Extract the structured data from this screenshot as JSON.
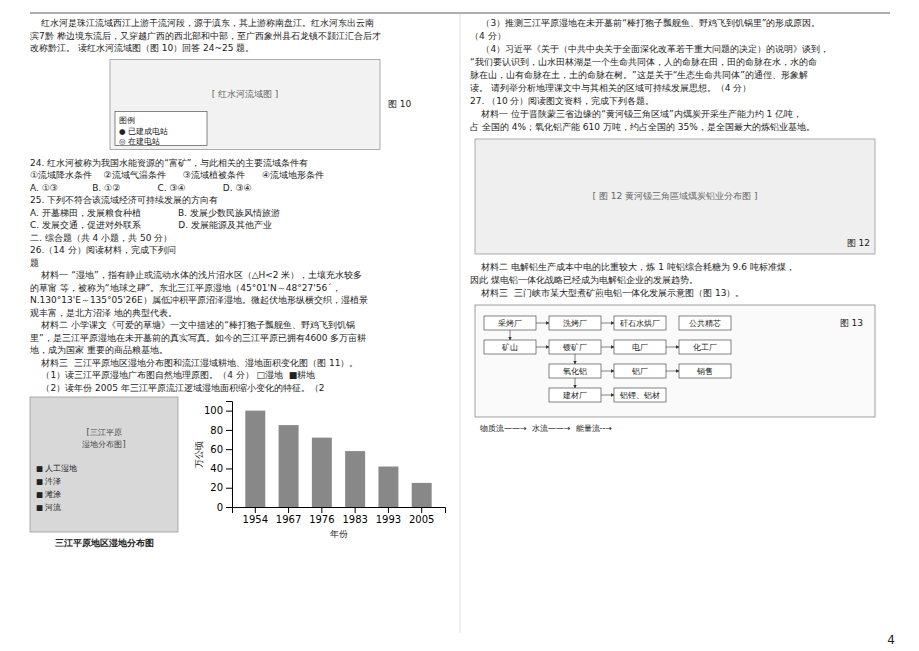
{
  "background_color": "#ffffff",
  "page_number": "4",
  "left_column": {
    "intro": [
      "    红水河是珠江流域西江上游干流河段，源于滇东，其上游称南盘江。红水河东出云南",
      "滨7黔 桦边境东流后，又穿越广西的西北部和中部，至广西象州县石龙镇不颢江汇合后才",
      "改称黔江。 读红水河流域图（图 10）回答 24~25 题。"
    ],
    "map10": {
      "label": "[ 红水河流域图 ]",
      "legend_title": "图例",
      "legend_items": [
        "● 已建成电站",
        "◎ 在建电站"
      ],
      "caption": "图 10"
    },
    "body": [
      "24. 红水河被称为我国水能资源的“富矿”，与此相关的主要流域条件有",
      "①流域降水条件    ②流域气温条件      ③流域植被条件      ④流域地形条件",
      "A. ①③            B. ①②             C. ③④             D. ③④",
      "25. 下列不符合该流域经济可持续发展的方向有",
      "A. 开墓梯田，发展粮食种植             B. 发展少数民族风情旅游",
      "C. 发展交通，促进对外联系             D. 发展能源及其他产业",
      "二. 综合题（共 4 小题，共 50 分）",
      "26.（14 分）阅读材料，完成下列问",
      "题",
      "    材料一 “湿地”，指有静止或流动水体的浅片沼水区（△H<2 米），土壤充水较多",
      "的草甯 等，被称为“地球之肆”。东北三江平原湿地（45°01'N～48°27'56´，",
      "N.130°13'E～135°05'26E）属低冲积平原沼泽湿地。微起伏地形纵横交织，湿植景",
      "观丰富，是北方沼泽 地的典型代表。",
      "    材料二 小学课文《可爱的草塘》一文中描述的“棒打狍子瓢舰鱼、野鸡飞到饥锅",
      "里”，是三江平原湿地在未开墓前的真实写真。如今的三江平原已拥有4600 多万亩耕",
      "地，成为国家 重要的商品粮基地。",
      "    材料三  三江平原地区湿地分布图和流江湿域耕地、湿地面积变化图（图 11）。",
      "    （1）读三江平原湿地广布图自然地理原图。（4 分） □湿地  ■耕地",
      "    （2）读年份 2005 年三江平原流江逻域湿地面积缩小变化的特征。（2"
    ],
    "map11": {
      "label_lines": [
        "[三江平原",
        "湿地分布图]"
      ],
      "legend_items": [
        "■ 人工湿地",
        "■ 汼泽",
        "■ 滩涂",
        "■ 河流"
      ],
      "caption": "三江平原地区湿地分布图"
    }
  },
  "right_column": {
    "text_1": [
      "    （3）推测三江平原湿地在未开墓前“棒打狍子瓢舰鱼、野鸡飞到饥锅里”的形成原因。",
      "（4 分）",
      "    （4）习近平《关于（中共中央关于全面深化改革若干重大问题的决定）的说明》谈到，",
      "“我们要认识到，山水田林湖是一个生命共同体，人的命脉在田，田的命脉在水，水的命",
      "脉在山，山有命脉在土，土的命脉在树。”这是关于“生态生命共同体”的通俓、形象解",
      "读。 请列举分析地理课文中与其相关的区域可持续发展思想。（4 分）",
      "27. （10 分）阅读图文资料，完成下列各题。",
      "    材料一 位于晋陕蒙三省边缘的“黄河钑三角区域”内燤炭开采生产能力约 1 亿吨，",
      "占 全国的 4%；氧化铝产能 610 万吨，约占全国的 35%，是全国最大的炼铝业基地。"
    ],
    "map12": {
      "label": "[ 图 12 黄河钑三角區域燤炭铝业分布图 ]",
      "caption": "图 12"
    },
    "text_2": [
      "    材料二 电解铝生产成本中电的比重较大，炼 1 吨铝综合耗糖为 9.6 吨标准煤，",
      "因此 煤电铝一体化战略已经成为电解铝企业的发展趋势。",
      "    材料三  三门峡市某大型煮矿煎电铝一体化发展示意图（图 13）。"
    ],
    "figure13": {
      "boxes": [
        [
          "采烤厂",
          "洗烤厂",
          "矸石水烘厂",
          "公共精芯"
        ],
        [
          "矿山",
          "锼矿厂",
          "电厂",
          "化工厂"
        ],
        [
          "氧化铝",
          "铝厂",
          "销售"
        ],
        [
          "建材厂",
          "铝锂、铝材"
        ]
      ],
      "caption": "图 13",
      "flow_legend": "物质流——→  水流——→  能量流--→"
    }
  },
  "chart_data": {
    "type": "bar",
    "categories": [
      "1954",
      "1967",
      "1976",
      "1983",
      "1993",
      "2005"
    ],
    "values": [
      100,
      85,
      72,
      58,
      42,
      25
    ],
    "color": "#888888",
    "ylim": [
      0,
      110
    ],
    "yticks": [
      0,
      20,
      40,
      60,
      80,
      100
    ],
    "ylabel": "万公顷",
    "xlabel": "年份",
    "grid": false
  }
}
